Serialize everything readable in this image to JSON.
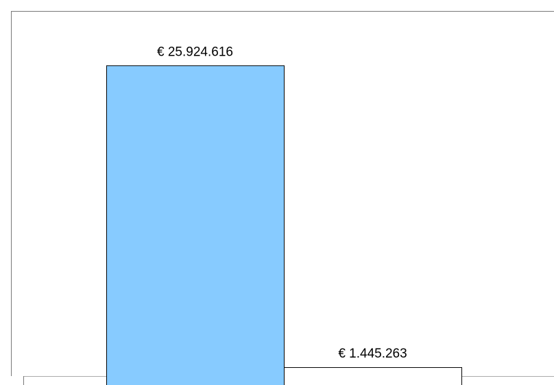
{
  "chart_data": {
    "type": "bar",
    "categories": [
      null,
      null
    ],
    "series": [
      {
        "values": [
          25924616,
          1445263
        ],
        "colors": [
          "#87cbff",
          "#ffffff"
        ]
      }
    ],
    "value_labels": [
      "€ 25.924.616",
      "€ 1.445.263"
    ],
    "ylim": [
      0,
      29000000
    ]
  }
}
